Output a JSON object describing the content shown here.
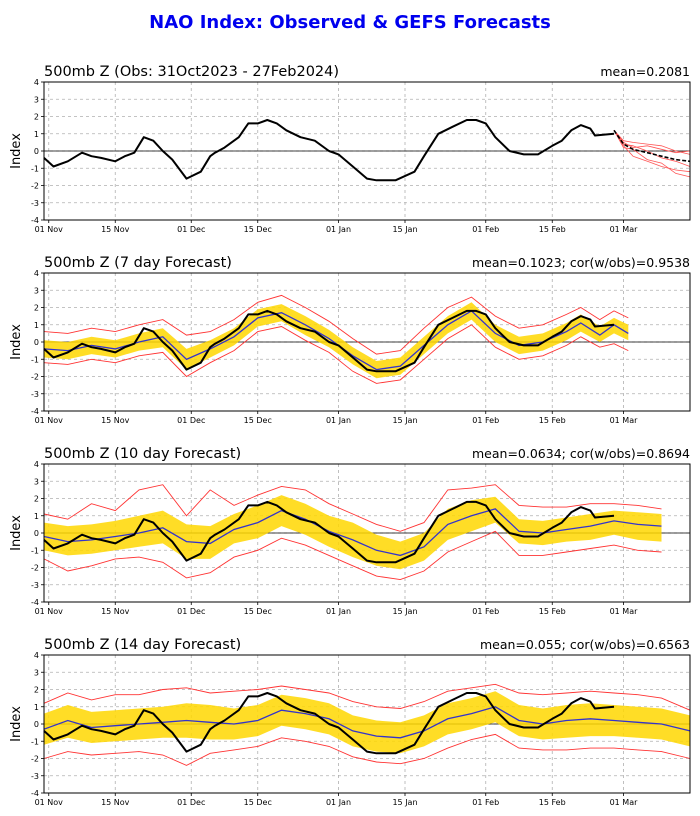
{
  "figure_title": "NAO Index: Observed & GEFS Forecasts",
  "colors": {
    "title": "#0000ee",
    "observed": "#000000",
    "ensemble_mean": "#3333cc",
    "spread_band": "#ffd700",
    "ensemble_bounds": "#ff3333",
    "forecast_members": "#ff5555"
  },
  "chart_data": [
    {
      "type": "line",
      "title": "500mb Z (Obs: 31Oct2023 - 27Feb2024)",
      "stat_text": "mean=0.2081",
      "ylabel": "Index",
      "ylim": [
        -4,
        4
      ],
      "yticks": [
        -4,
        -3,
        -2,
        -1,
        0,
        1,
        2,
        3,
        4
      ],
      "xticklabels": [
        "01 Nov",
        "15 Nov",
        "01 Dec",
        "15 Dec",
        "01 Jan",
        "15 Jan",
        "01 Feb",
        "15 Feb",
        "01 Mar"
      ],
      "xtick_days": [
        1,
        15,
        31,
        45,
        62,
        76,
        93,
        107,
        122
      ],
      "xlim": [
        0,
        136
      ],
      "grid": true,
      "series": [
        {
          "role": "observed",
          "x": [
            0,
            2,
            5,
            8,
            10,
            12,
            15,
            17,
            19,
            21,
            23,
            25,
            27,
            30,
            33,
            35,
            36,
            38,
            41,
            43,
            45,
            47,
            49,
            51,
            54,
            57,
            60,
            62,
            65,
            68,
            70,
            74,
            78,
            80,
            83,
            86,
            89,
            91,
            93,
            95,
            98,
            101,
            104,
            107,
            109,
            111,
            113,
            115,
            116,
            118,
            120
          ],
          "y": [
            -0.4,
            -0.9,
            -0.6,
            -0.1,
            -0.3,
            -0.4,
            -0.6,
            -0.3,
            -0.1,
            0.8,
            0.6,
            0.0,
            -0.5,
            -1.6,
            -1.2,
            -0.3,
            -0.1,
            0.2,
            0.8,
            1.6,
            1.6,
            1.8,
            1.6,
            1.2,
            0.8,
            0.6,
            0.0,
            -0.2,
            -0.9,
            -1.6,
            -1.7,
            -1.7,
            -1.2,
            -0.3,
            1.0,
            1.4,
            1.8,
            1.8,
            1.6,
            0.8,
            0.0,
            -0.2,
            -0.2,
            0.3,
            0.6,
            1.2,
            1.5,
            1.3,
            0.9,
            0.95,
            1.0
          ]
        },
        {
          "role": "forecast_mean",
          "x": [
            120,
            122,
            124,
            127,
            130,
            133,
            136
          ],
          "y": [
            1.2,
            0.4,
            0.1,
            -0.1,
            -0.3,
            -0.5,
            -0.6
          ]
        }
      ],
      "ensemble_members": [
        [
          1.2,
          0.5,
          0.2,
          0.3,
          0.1,
          -0.1,
          0.0
        ],
        [
          1.2,
          0.3,
          -0.3,
          -0.6,
          -0.9,
          -1.1,
          -1.2
        ],
        [
          1.2,
          0.6,
          0.5,
          0.4,
          0.3,
          0.0,
          -0.2
        ],
        [
          1.2,
          0.2,
          0.1,
          -0.5,
          -0.7,
          -1.3,
          -1.5
        ],
        [
          1.2,
          0.4,
          0.3,
          0.0,
          -0.4,
          -0.6,
          -0.9
        ]
      ],
      "member_x": [
        120,
        122,
        124,
        127,
        130,
        133,
        136
      ]
    },
    {
      "type": "line",
      "title": "500mb Z (7 day Forecast)",
      "stat_text": "mean=0.1023; cor(w/obs)=0.9538",
      "ylabel": "Index",
      "ylim": [
        -4,
        4
      ],
      "yticks": [
        -4,
        -3,
        -2,
        -1,
        0,
        1,
        2,
        3,
        4
      ],
      "xticklabels": [
        "01 Nov",
        "15 Nov",
        "01 Dec",
        "15 Dec",
        "01 Jan",
        "15 Jan",
        "01 Feb",
        "15 Feb",
        "01 Mar"
      ],
      "xtick_days": [
        1,
        15,
        31,
        45,
        62,
        76,
        93,
        107,
        122
      ],
      "xlim": [
        0,
        136
      ],
      "grid": true,
      "band_x": [
        0,
        5,
        10,
        15,
        20,
        25,
        30,
        35,
        40,
        45,
        50,
        55,
        60,
        65,
        70,
        75,
        80,
        85,
        90,
        95,
        100,
        105,
        110,
        113,
        117,
        120,
        123
      ],
      "mean_y": [
        -0.4,
        -0.5,
        -0.2,
        -0.4,
        0.0,
        0.3,
        -1.0,
        -0.4,
        0.3,
        1.4,
        1.7,
        1.0,
        0.2,
        -0.8,
        -1.6,
        -1.4,
        -0.2,
        1.0,
        1.8,
        0.5,
        -0.2,
        0.0,
        0.6,
        1.1,
        0.4,
        1.0,
        0.5
      ],
      "band_low": [
        -0.9,
        -1.0,
        -0.7,
        -0.9,
        -0.5,
        -0.3,
        -1.6,
        -0.9,
        -0.2,
        0.9,
        1.2,
        0.4,
        -0.3,
        -1.3,
        -2.1,
        -1.9,
        -0.7,
        0.5,
        1.3,
        0.0,
        -0.7,
        -0.5,
        0.1,
        0.6,
        0.0,
        0.5,
        0.1
      ],
      "band_high": [
        0.1,
        0.0,
        0.3,
        0.1,
        0.5,
        0.8,
        -0.4,
        0.1,
        0.8,
        1.9,
        2.2,
        1.5,
        0.7,
        -0.3,
        -1.1,
        -0.9,
        0.3,
        1.5,
        2.3,
        1.0,
        0.3,
        0.5,
        1.1,
        1.6,
        0.9,
        1.4,
        1.0
      ],
      "bound_low": [
        -1.2,
        -1.3,
        -1.0,
        -1.2,
        -0.8,
        -0.6,
        -2.0,
        -1.2,
        -0.5,
        0.6,
        0.9,
        0.1,
        -0.6,
        -1.7,
        -2.4,
        -2.2,
        -1.0,
        0.2,
        1.0,
        -0.3,
        -1.0,
        -0.8,
        -0.2,
        0.3,
        -0.3,
        -0.1,
        -0.5
      ],
      "bound_high": [
        0.6,
        0.5,
        0.8,
        0.6,
        1.0,
        1.3,
        0.4,
        0.6,
        1.3,
        2.3,
        2.7,
        2.0,
        1.2,
        0.2,
        -0.7,
        -0.5,
        0.8,
        2.0,
        2.6,
        1.5,
        0.8,
        1.0,
        1.6,
        2.0,
        1.3,
        1.8,
        1.4
      ],
      "observed": {
        "x": [
          0,
          2,
          5,
          8,
          10,
          12,
          15,
          17,
          19,
          21,
          23,
          25,
          27,
          30,
          33,
          35,
          36,
          38,
          41,
          43,
          45,
          47,
          49,
          51,
          54,
          57,
          60,
          62,
          65,
          68,
          70,
          74,
          78,
          80,
          83,
          86,
          89,
          91,
          93,
          95,
          98,
          101,
          104,
          107,
          109,
          111,
          113,
          115,
          116,
          118,
          120
        ],
        "y": [
          -0.4,
          -0.9,
          -0.6,
          -0.1,
          -0.3,
          -0.4,
          -0.6,
          -0.3,
          -0.1,
          0.8,
          0.6,
          0.0,
          -0.5,
          -1.6,
          -1.2,
          -0.3,
          -0.1,
          0.2,
          0.8,
          1.6,
          1.6,
          1.8,
          1.6,
          1.2,
          0.8,
          0.6,
          0.0,
          -0.2,
          -0.9,
          -1.6,
          -1.7,
          -1.7,
          -1.2,
          -0.3,
          1.0,
          1.4,
          1.8,
          1.8,
          1.6,
          0.8,
          0.0,
          -0.2,
          -0.2,
          0.3,
          0.6,
          1.2,
          1.5,
          1.3,
          0.9,
          0.95,
          1.0
        ]
      }
    },
    {
      "type": "line",
      "title": "500mb Z (10 day Forecast)",
      "stat_text": "mean=0.0634; cor(w/obs)=0.8694",
      "ylabel": "Index",
      "ylim": [
        -4,
        4
      ],
      "yticks": [
        -4,
        -3,
        -2,
        -1,
        0,
        1,
        2,
        3,
        4
      ],
      "xticklabels": [
        "01 Nov",
        "15 Nov",
        "01 Dec",
        "15 Dec",
        "01 Jan",
        "15 Jan",
        "01 Feb",
        "15 Feb",
        "01 Mar"
      ],
      "xtick_days": [
        1,
        15,
        31,
        45,
        62,
        76,
        93,
        107,
        122
      ],
      "xlim": [
        0,
        136
      ],
      "grid": true,
      "band_x": [
        0,
        5,
        10,
        15,
        20,
        25,
        30,
        35,
        40,
        45,
        50,
        55,
        60,
        65,
        70,
        75,
        80,
        85,
        90,
        95,
        100,
        105,
        110,
        115,
        120,
        125,
        130
      ],
      "mean_y": [
        -0.2,
        -0.5,
        -0.4,
        -0.2,
        0.0,
        0.3,
        -0.5,
        -0.6,
        0.2,
        0.6,
        1.3,
        0.8,
        0.1,
        -0.4,
        -1.0,
        -1.3,
        -0.8,
        0.5,
        1.0,
        1.4,
        0.1,
        0.0,
        0.2,
        0.4,
        0.7,
        0.5,
        0.4
      ],
      "band_low": [
        -1.0,
        -1.3,
        -1.2,
        -1.0,
        -0.8,
        -0.6,
        -1.5,
        -1.5,
        -0.6,
        -0.3,
        0.4,
        -0.1,
        -0.8,
        -1.4,
        -1.9,
        -2.1,
        -1.6,
        -0.4,
        0.1,
        0.6,
        -0.6,
        -0.7,
        -0.5,
        -0.4,
        -0.1,
        -0.4,
        -0.5
      ],
      "band_high": [
        0.6,
        0.4,
        0.5,
        0.7,
        1.0,
        1.3,
        0.5,
        0.4,
        1.1,
        1.6,
        2.2,
        1.7,
        1.0,
        0.6,
        -0.1,
        -0.5,
        0.0,
        1.4,
        1.9,
        2.1,
        0.8,
        0.7,
        0.9,
        1.1,
        1.3,
        1.2,
        1.1
      ],
      "bound_low": [
        -1.5,
        -2.2,
        -1.9,
        -1.5,
        -1.4,
        -1.7,
        -2.6,
        -2.3,
        -1.4,
        -1.0,
        -0.3,
        -0.7,
        -1.3,
        -1.9,
        -2.5,
        -2.7,
        -2.2,
        -1.1,
        -0.5,
        0.1,
        -1.3,
        -1.3,
        -1.1,
        -0.9,
        -0.7,
        -1.0,
        -1.1
      ],
      "bound_high": [
        1.1,
        0.8,
        1.7,
        1.3,
        2.5,
        2.8,
        1.0,
        2.5,
        1.6,
        2.2,
        2.7,
        2.5,
        1.7,
        1.1,
        0.5,
        0.1,
        0.6,
        2.5,
        2.6,
        2.8,
        1.6,
        1.5,
        1.5,
        1.7,
        1.7,
        1.6,
        1.4
      ],
      "observed": {
        "x": [
          0,
          2,
          5,
          8,
          10,
          12,
          15,
          17,
          19,
          21,
          23,
          25,
          27,
          30,
          33,
          35,
          36,
          38,
          41,
          43,
          45,
          47,
          49,
          51,
          54,
          57,
          60,
          62,
          65,
          68,
          70,
          74,
          78,
          80,
          83,
          86,
          89,
          91,
          93,
          95,
          98,
          101,
          104,
          107,
          109,
          111,
          113,
          115,
          116,
          118,
          120
        ],
        "y": [
          -0.4,
          -0.9,
          -0.6,
          -0.1,
          -0.3,
          -0.4,
          -0.6,
          -0.3,
          -0.1,
          0.8,
          0.6,
          0.0,
          -0.5,
          -1.6,
          -1.2,
          -0.3,
          -0.1,
          0.2,
          0.8,
          1.6,
          1.6,
          1.8,
          1.6,
          1.2,
          0.8,
          0.6,
          0.0,
          -0.2,
          -0.9,
          -1.6,
          -1.7,
          -1.7,
          -1.2,
          -0.3,
          1.0,
          1.4,
          1.8,
          1.8,
          1.6,
          0.8,
          0.0,
          -0.2,
          -0.2,
          0.3,
          0.6,
          1.2,
          1.5,
          1.3,
          0.9,
          0.95,
          1.0
        ]
      }
    },
    {
      "type": "line",
      "title": "500mb Z (14 day Forecast)",
      "stat_text": "mean=0.055; cor(w/obs)=0.6563",
      "ylabel": "Index",
      "ylim": [
        -4,
        4
      ],
      "yticks": [
        -4,
        -3,
        -2,
        -1,
        0,
        1,
        2,
        3,
        4
      ],
      "xticklabels": [
        "01 Nov",
        "15 Nov",
        "01 Dec",
        "15 Dec",
        "01 Jan",
        "15 Jan",
        "01 Feb",
        "15 Feb",
        "01 Mar"
      ],
      "xtick_days": [
        1,
        15,
        31,
        45,
        62,
        76,
        93,
        107,
        122
      ],
      "xlim": [
        0,
        136
      ],
      "grid": true,
      "band_x": [
        0,
        5,
        10,
        15,
        20,
        25,
        30,
        35,
        40,
        45,
        50,
        55,
        60,
        65,
        70,
        75,
        80,
        85,
        90,
        95,
        100,
        105,
        110,
        115,
        120,
        125,
        130,
        136
      ],
      "mean_y": [
        -0.3,
        0.2,
        -0.2,
        -0.1,
        0.0,
        0.1,
        0.2,
        0.1,
        0.0,
        0.2,
        0.8,
        0.6,
        0.3,
        -0.4,
        -0.7,
        -0.8,
        -0.4,
        0.3,
        0.6,
        1.0,
        0.2,
        0.0,
        0.2,
        0.3,
        0.2,
        0.1,
        0.0,
        -0.4
      ],
      "band_low": [
        -1.2,
        -0.8,
        -1.1,
        -1.0,
        -0.9,
        -0.8,
        -0.8,
        -0.9,
        -0.9,
        -0.7,
        -0.1,
        -0.3,
        -0.6,
        -1.3,
        -1.6,
        -1.7,
        -1.3,
        -0.6,
        -0.3,
        0.1,
        -0.7,
        -0.9,
        -0.8,
        -0.7,
        -0.7,
        -0.8,
        -0.9,
        -1.3
      ],
      "band_high": [
        0.6,
        1.1,
        0.7,
        0.8,
        0.9,
        1.0,
        1.2,
        1.1,
        0.9,
        1.1,
        1.7,
        1.5,
        1.2,
        0.5,
        0.2,
        0.1,
        0.5,
        1.2,
        1.5,
        1.9,
        1.1,
        0.9,
        1.1,
        1.2,
        1.1,
        1.0,
        0.9,
        0.5
      ],
      "bound_low": [
        -2.0,
        -1.6,
        -1.8,
        -1.7,
        -1.6,
        -1.8,
        -2.4,
        -1.7,
        -1.5,
        -1.3,
        -0.8,
        -1.0,
        -1.3,
        -1.9,
        -2.2,
        -2.3,
        -2.0,
        -1.4,
        -0.9,
        -0.6,
        -1.4,
        -1.5,
        -1.5,
        -1.4,
        -1.4,
        -1.5,
        -1.6,
        -2.0
      ],
      "bound_high": [
        1.2,
        1.8,
        1.4,
        1.7,
        1.7,
        2.0,
        2.1,
        1.8,
        1.9,
        2.0,
        2.2,
        2.0,
        1.8,
        1.3,
        1.0,
        0.9,
        1.3,
        1.9,
        2.1,
        2.3,
        1.8,
        1.7,
        1.8,
        1.9,
        1.8,
        1.7,
        1.5,
        0.8
      ],
      "observed": {
        "x": [
          0,
          2,
          5,
          8,
          10,
          12,
          15,
          17,
          19,
          21,
          23,
          25,
          27,
          30,
          33,
          35,
          36,
          38,
          41,
          43,
          45,
          47,
          49,
          51,
          54,
          57,
          60,
          62,
          65,
          68,
          70,
          74,
          78,
          80,
          83,
          86,
          89,
          91,
          93,
          95,
          98,
          101,
          104,
          107,
          109,
          111,
          113,
          115,
          116,
          118,
          120
        ],
        "y": [
          -0.4,
          -0.9,
          -0.6,
          -0.1,
          -0.3,
          -0.4,
          -0.6,
          -0.3,
          -0.1,
          0.8,
          0.6,
          0.0,
          -0.5,
          -1.6,
          -1.2,
          -0.3,
          -0.1,
          0.2,
          0.8,
          1.6,
          1.6,
          1.8,
          1.6,
          1.2,
          0.8,
          0.6,
          0.0,
          -0.2,
          -0.9,
          -1.6,
          -1.7,
          -1.7,
          -1.2,
          -0.3,
          1.0,
          1.4,
          1.8,
          1.8,
          1.6,
          0.8,
          0.0,
          -0.2,
          -0.2,
          0.3,
          0.6,
          1.2,
          1.5,
          1.3,
          0.9,
          0.95,
          1.0
        ]
      }
    }
  ]
}
